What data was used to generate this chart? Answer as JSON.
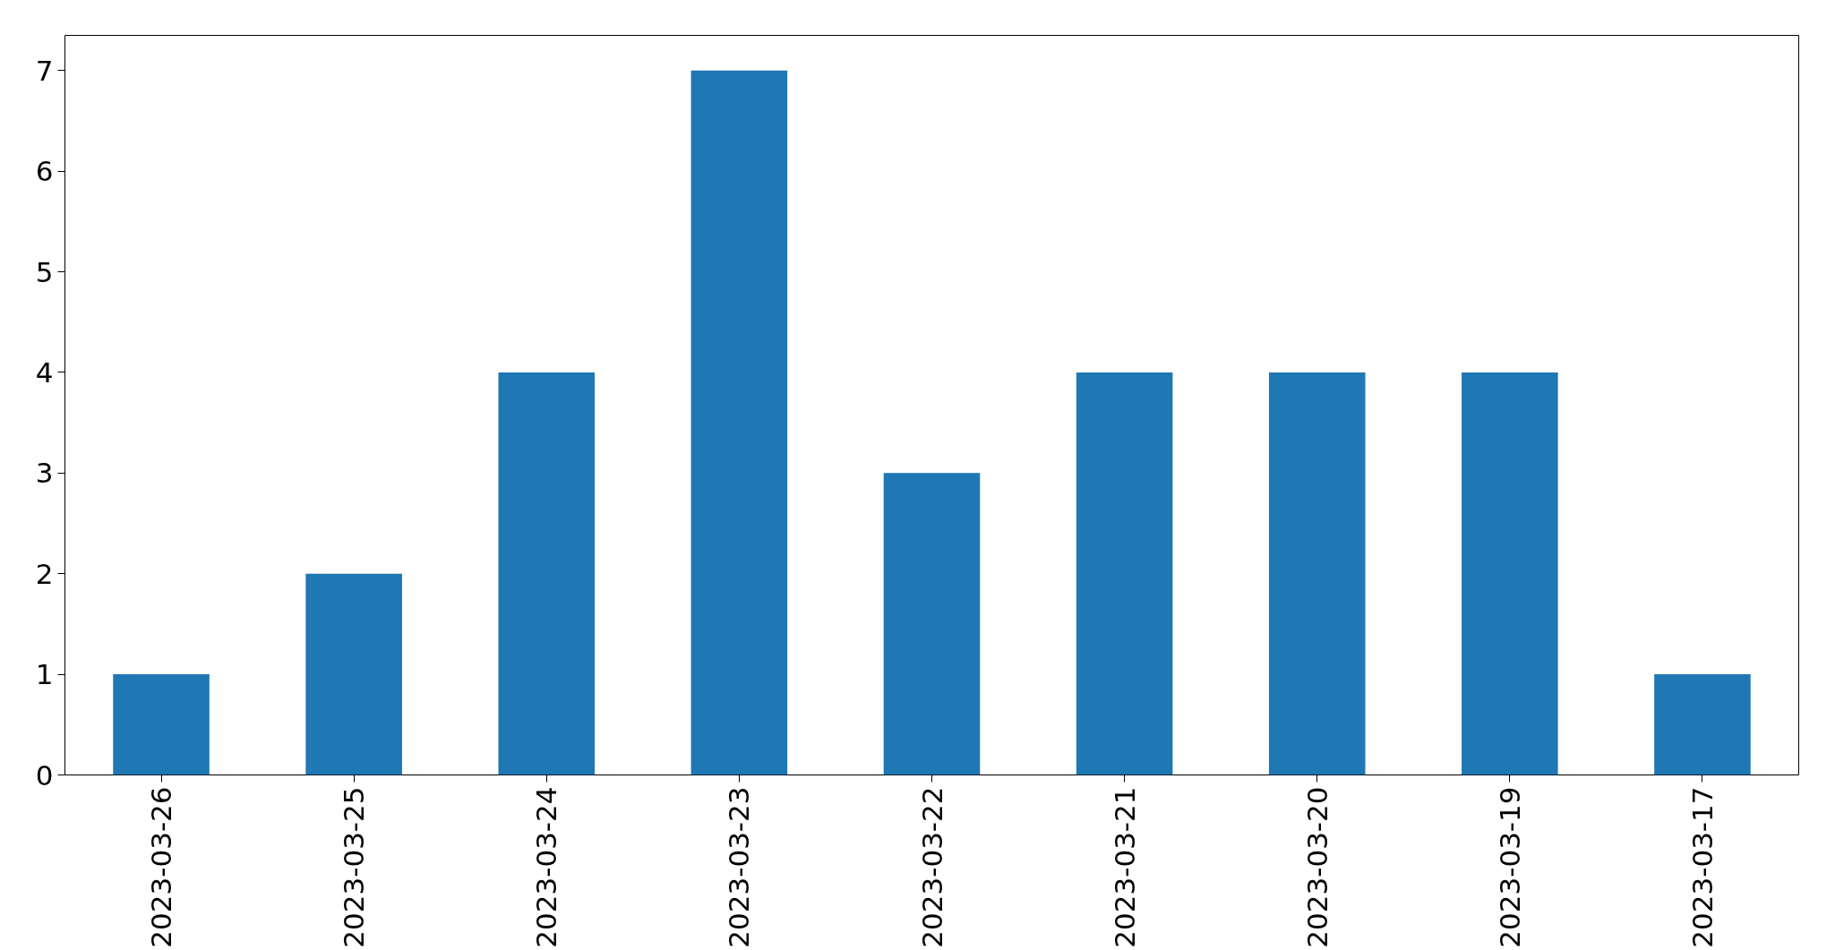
{
  "chart_data": {
    "type": "bar",
    "categories": [
      "2023-03-26",
      "2023-03-25",
      "2023-03-24",
      "2023-03-23",
      "2023-03-22",
      "2023-03-21",
      "2023-03-20",
      "2023-03-19",
      "2023-03-17"
    ],
    "values": [
      1,
      2,
      4,
      7,
      3,
      4,
      4,
      4,
      1
    ],
    "color": "#1f77b4",
    "ylim": [
      0,
      7.35
    ],
    "yticks": [
      0,
      1,
      2,
      3,
      4,
      5,
      6,
      7
    ],
    "grid": false
  }
}
